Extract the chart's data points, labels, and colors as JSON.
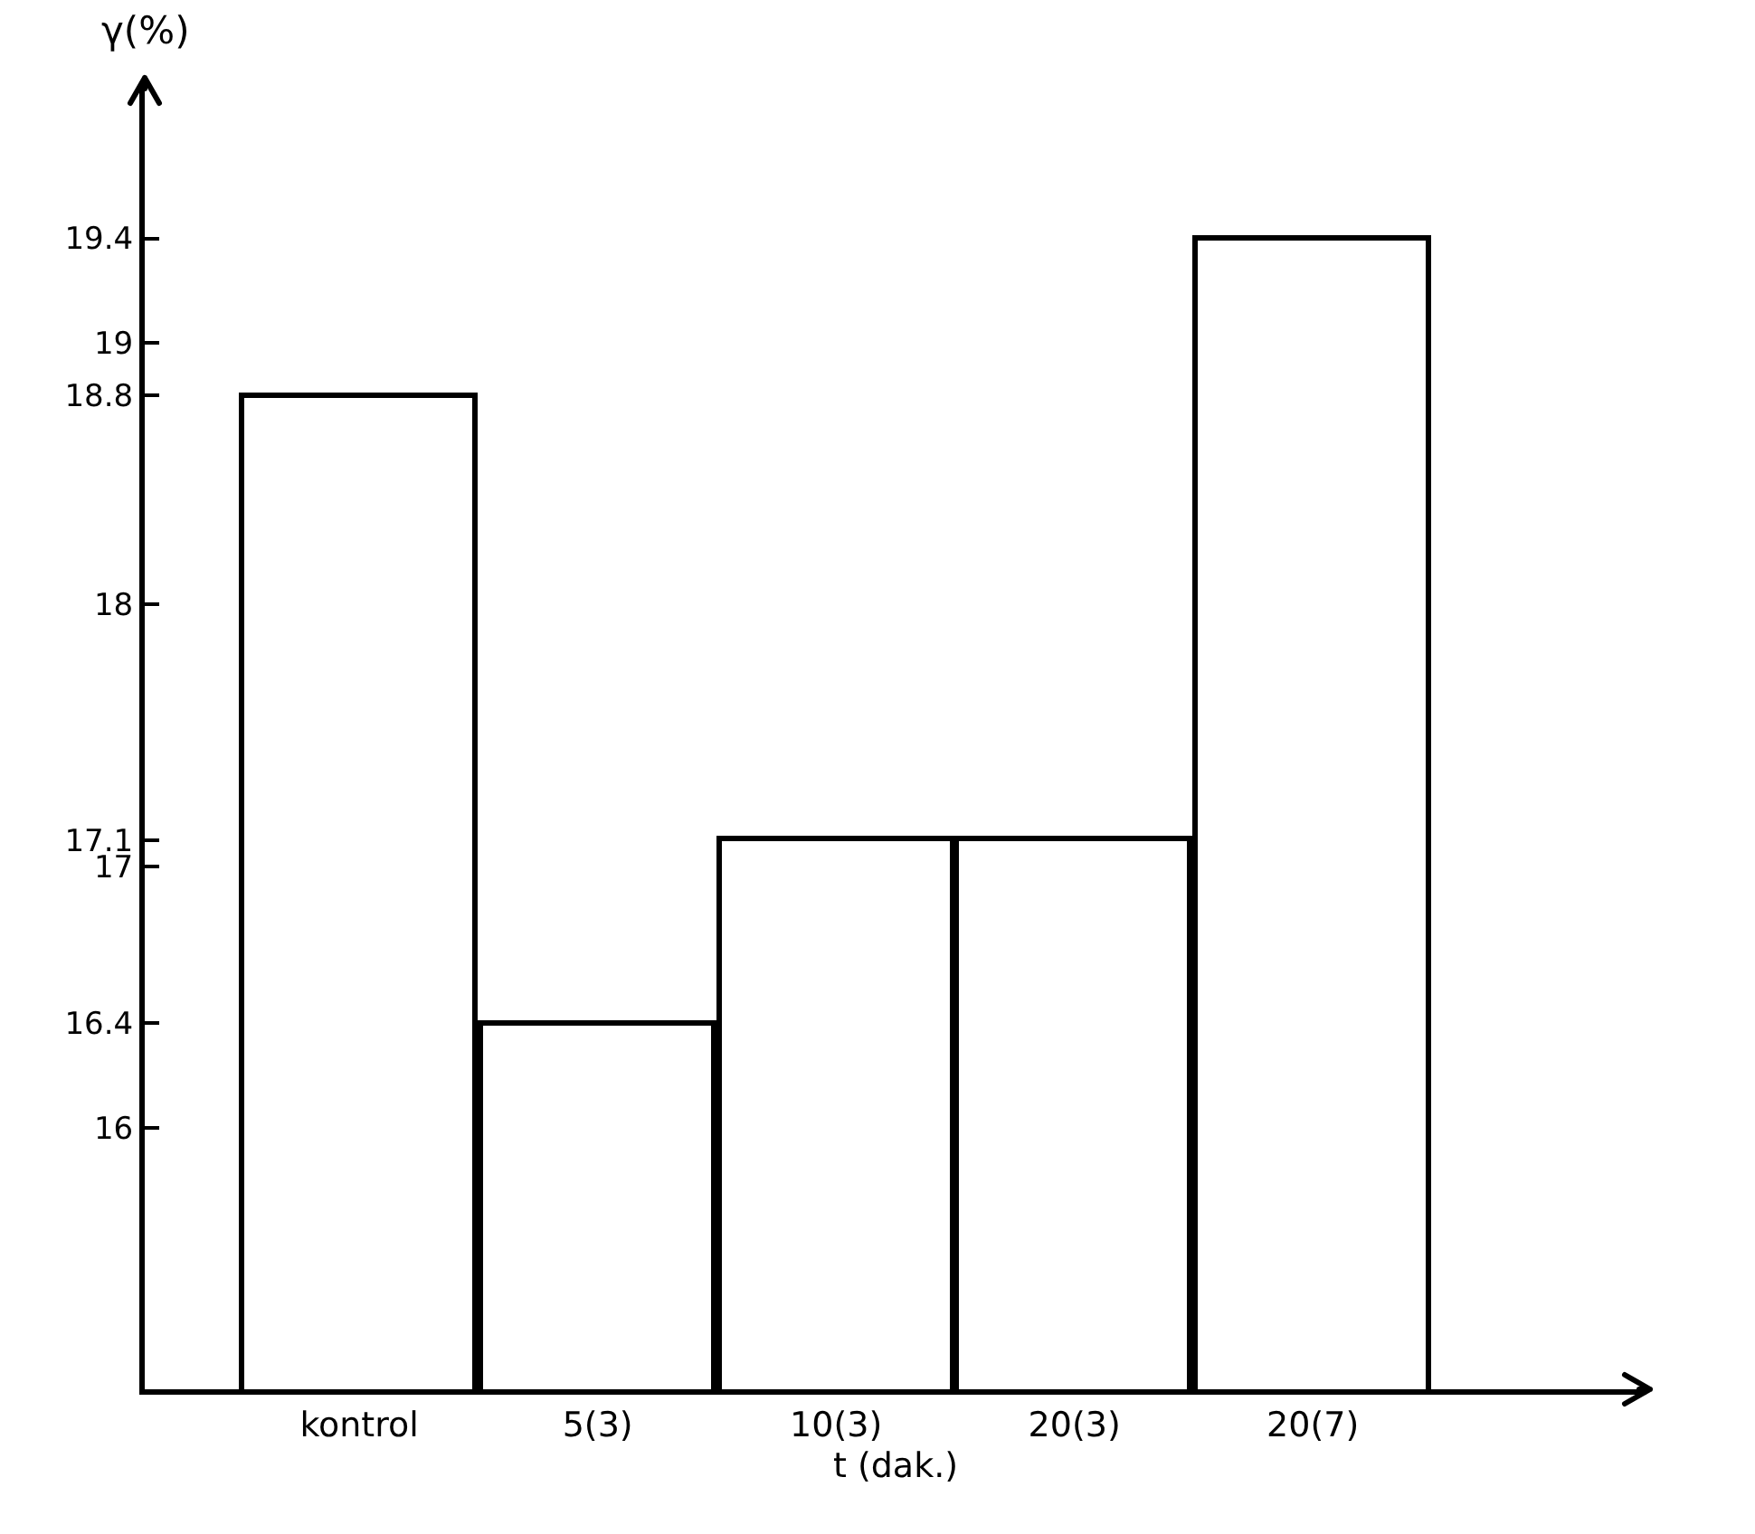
{
  "chart_data": {
    "type": "bar",
    "xlabel": "t (dak.)",
    "ylabel": "γ(%)",
    "categories": [
      "kontrol",
      "5(3)",
      "10(3)",
      "20(3)",
      "20(7)"
    ],
    "values": [
      18.8,
      16.4,
      17.1,
      17.1,
      19.4
    ],
    "color": "#ffffff",
    "ylim": [
      15,
      20
    ],
    "yticks": [
      16,
      16.4,
      17,
      17.1,
      18,
      18.8,
      19,
      19.4
    ],
    "grid": false,
    "legend": false
  }
}
